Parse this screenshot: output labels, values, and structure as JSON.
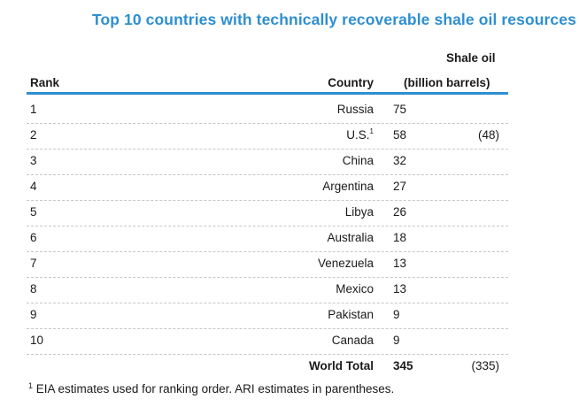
{
  "chart_data": {
    "type": "table",
    "title": "Top 10 countries with technically recoverable shale oil resources",
    "columns": {
      "rank": "Rank",
      "country": "Country",
      "value_line1": "Shale oil",
      "value_line2": "(billion barrels)"
    },
    "rows": [
      {
        "rank": "1",
        "country": "Russia",
        "sup": "",
        "value": "75",
        "ari": ""
      },
      {
        "rank": "2",
        "country": "U.S.",
        "sup": "1",
        "value": "58",
        "ari": "(48)"
      },
      {
        "rank": "3",
        "country": "China",
        "sup": "",
        "value": "32",
        "ari": ""
      },
      {
        "rank": "4",
        "country": "Argentina",
        "sup": "",
        "value": "27",
        "ari": ""
      },
      {
        "rank": "5",
        "country": "Libya",
        "sup": "",
        "value": "26",
        "ari": ""
      },
      {
        "rank": "6",
        "country": "Australia",
        "sup": "",
        "value": "18",
        "ari": ""
      },
      {
        "rank": "7",
        "country": "Venezuela",
        "sup": "",
        "value": "13",
        "ari": ""
      },
      {
        "rank": "8",
        "country": "Mexico",
        "sup": "",
        "value": "13",
        "ari": ""
      },
      {
        "rank": "9",
        "country": "Pakistan",
        "sup": "",
        "value": "9",
        "ari": ""
      },
      {
        "rank": "10",
        "country": "Canada",
        "sup": "",
        "value": "9",
        "ari": ""
      }
    ],
    "total": {
      "label": "World Total",
      "value": "345",
      "ari": "(335)"
    },
    "footnote": {
      "marker": "1",
      "text": "EIA estimates used for ranking order. ARI estimates in parentheses."
    },
    "colors": {
      "title": "#2e8fd1",
      "rule": "#2e8fd1"
    }
  }
}
